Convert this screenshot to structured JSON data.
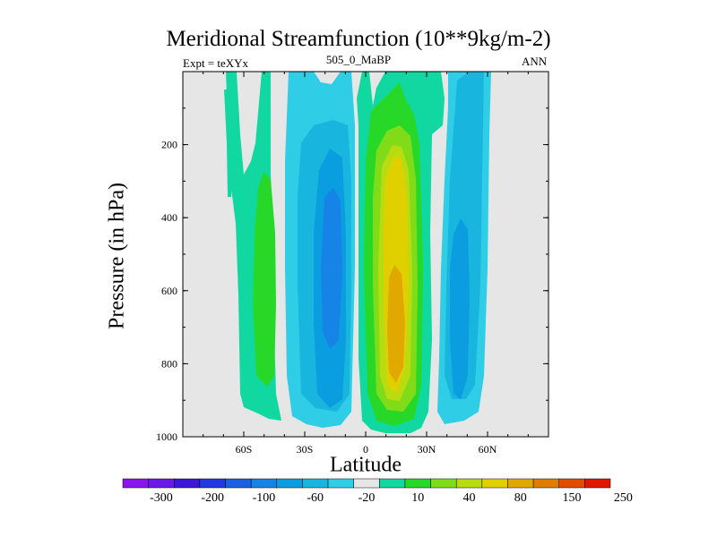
{
  "chart_data": {
    "type": "contour",
    "title": "Meridional Streamfunction (10**9kg/m-2)",
    "left_string": "Expt = teXYx",
    "center_string": "505_0_MaBP",
    "right_string": "ANN",
    "xlabel": "Latitude",
    "ylabel": "Pressure (in hPa)",
    "x_ticks": [
      {
        "value": -60,
        "label": "60S"
      },
      {
        "value": -30,
        "label": "30S"
      },
      {
        "value": 0,
        "label": "0"
      },
      {
        "value": 30,
        "label": "30N"
      },
      {
        "value": 60,
        "label": "60N"
      }
    ],
    "xlim": [
      -90,
      90
    ],
    "y_ticks": [
      200,
      400,
      600,
      800,
      1000
    ],
    "ylim": [
      1000,
      0
    ],
    "colorbar": {
      "levels": [
        "-300",
        "-200",
        "-100",
        "-60",
        "-20",
        "10",
        "40",
        "80",
        "150",
        "250"
      ],
      "colors": [
        "#8a16ee",
        "#6a1ae6",
        "#3c18d6",
        "#2238e0",
        "#1a60e0",
        "#1684e6",
        "#0a9ee0",
        "#18b6de",
        "#30cee6",
        "#e6e6e6",
        "#10d8a0",
        "#28d828",
        "#80dc18",
        "#b8dc10",
        "#e0d000",
        "#e0a800",
        "#e07c00",
        "#e04c00",
        "#e01800"
      ]
    },
    "background": "#e6e6e6",
    "regions": [
      {
        "desc": "weak positive column 60S-45S",
        "color": "#10d8a0"
      },
      {
        "desc": "positive core ~50S",
        "color": "#28d828"
      },
      {
        "desc": "negative cell 40S-5S",
        "color": "#18b6de"
      },
      {
        "desc": "negative core ~25S",
        "color": "#0a9ee0"
      },
      {
        "desc": "positive Hadley cell 0-35N",
        "color": "#28d828"
      },
      {
        "desc": "max core ~15N",
        "color": "#e0a800"
      },
      {
        "desc": "negative cell 35N-60N",
        "color": "#18b6de"
      },
      {
        "desc": "negative core ~48N",
        "color": "#0a9ee0"
      }
    ]
  }
}
